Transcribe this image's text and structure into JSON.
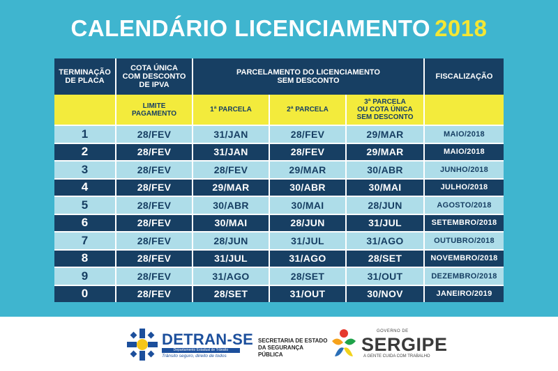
{
  "title": {
    "main": "CALENDÁRIO LICENCIAMENTO",
    "year": "2018"
  },
  "header": {
    "terminacao": [
      "TERMINAÇÃO",
      "DE PLACA"
    ],
    "cota": [
      "COTA ÚNICA",
      "COM DESCONTO",
      "DE IPVA"
    ],
    "parcelamento": [
      "PARCELAMENTO DO LICENCIAMENTO",
      "SEM DESCONTO"
    ],
    "fiscalizacao": "FISCALIZAÇÃO"
  },
  "subheader": {
    "limite": [
      "LIMITE",
      "PAGAMENTO"
    ],
    "p1": "1ª PARCELA",
    "p2": "2ª PARCELA",
    "p3": [
      "3ª PARCELA",
      "OU COTA ÚNICA",
      "SEM DESCONTO"
    ]
  },
  "rows": [
    {
      "digit": "1",
      "cota": "28/FEV",
      "p1": "31/JAN",
      "p2": "28/FEV",
      "p3": "29/MAR",
      "fisc": "MAIO/2018"
    },
    {
      "digit": "2",
      "cota": "28/FEV",
      "p1": "31/JAN",
      "p2": "28/FEV",
      "p3": "29/MAR",
      "fisc": "MAIO/2018"
    },
    {
      "digit": "3",
      "cota": "28/FEV",
      "p1": "28/FEV",
      "p2": "29/MAR",
      "p3": "30/ABR",
      "fisc": "JUNHO/2018"
    },
    {
      "digit": "4",
      "cota": "28/FEV",
      "p1": "29/MAR",
      "p2": "30/ABR",
      "p3": "30/MAI",
      "fisc": "JULHO/2018"
    },
    {
      "digit": "5",
      "cota": "28/FEV",
      "p1": "30/ABR",
      "p2": "30/MAI",
      "p3": "28/JUN",
      "fisc": "AGOSTO/2018"
    },
    {
      "digit": "6",
      "cota": "28/FEV",
      "p1": "30/MAI",
      "p2": "28/JUN",
      "p3": "31/JUL",
      "fisc": "SETEMBRO/2018"
    },
    {
      "digit": "7",
      "cota": "28/FEV",
      "p1": "28/JUN",
      "p2": "31/JUL",
      "p3": "31/AGO",
      "fisc": "OUTUBRO/2018"
    },
    {
      "digit": "8",
      "cota": "28/FEV",
      "p1": "31/JUL",
      "p2": "31/AGO",
      "p3": "28/SET",
      "fisc": "NOVEMBRO/2018"
    },
    {
      "digit": "9",
      "cota": "28/FEV",
      "p1": "31/AGO",
      "p2": "28/SET",
      "p3": "31/OUT",
      "fisc": "DEZEMBRO/2018"
    },
    {
      "digit": "0",
      "cota": "28/FEV",
      "p1": "28/SET",
      "p2": "31/OUT",
      "p3": "30/NOV",
      "fisc": "JANEIRO/2019"
    }
  ],
  "footer": {
    "detran": "DETRAN-SE",
    "detran_sub": "Departamento Estadual de Trânsito",
    "detran_slogan": "Trânsito seguro, direito de todos",
    "secretaria": [
      "SECRETARIA DE ESTADO",
      "DA SEGURANÇA PÚBLICA"
    ],
    "governo": "GOVERNO DE",
    "sergipe": "SERGIPE",
    "sergipe_slogan": "A GENTE CUIDA COM TRABALHO"
  },
  "colors": {
    "background": "#3fb5cf",
    "navy": "#173f63",
    "light_row": "#aedde9",
    "yellow": "#f3eb3c"
  }
}
